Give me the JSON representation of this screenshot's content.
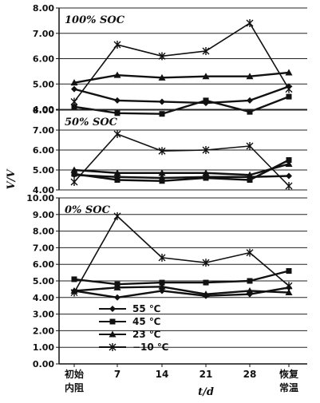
{
  "chart_data": {
    "type": "line",
    "categories": [
      [
        "初始",
        "内阻"
      ],
      [
        "7"
      ],
      [
        "14"
      ],
      [
        "21"
      ],
      [
        "28"
      ],
      [
        "恢复",
        "常温"
      ]
    ],
    "xlabel": "t/d",
    "ylabel": "V/V",
    "legend": {
      "placement": "bottom-left",
      "entries": [
        {
          "label": "55 ℃",
          "marker": "diamond"
        },
        {
          "label": "45 ℃",
          "marker": "square"
        },
        {
          "label": "23 ℃",
          "marker": "triangle"
        },
        {
          "label": "−10 ℃",
          "marker": "x"
        }
      ]
    },
    "panels": [
      {
        "title": "100% SOC",
        "ylim": [
          4.0,
          8.0
        ],
        "yticks": [
          "4.00",
          "5.00",
          "6.00",
          "7.00",
          "8.00"
        ],
        "series": [
          {
            "marker": "diamond",
            "values": [
              4.8,
              4.35,
              4.3,
              4.25,
              4.35,
              4.9
            ]
          },
          {
            "marker": "square",
            "values": [
              4.1,
              3.85,
              3.82,
              4.35,
              3.9,
              4.5
            ]
          },
          {
            "marker": "triangle",
            "values": [
              5.05,
              5.35,
              5.25,
              5.3,
              5.3,
              5.45
            ]
          },
          {
            "marker": "x",
            "values": [
              4.3,
              6.55,
              6.1,
              6.3,
              7.4,
              4.8
            ]
          }
        ]
      },
      {
        "title": "50% SOC",
        "ylim": [
          4.0,
          8.0
        ],
        "yticks": [
          "4.00",
          "5.00",
          "6.00",
          "7.00",
          "8.00"
        ],
        "series": [
          {
            "marker": "diamond",
            "values": [
              4.75,
              4.65,
              4.6,
              4.65,
              4.65,
              4.7
            ]
          },
          {
            "marker": "square",
            "values": [
              4.8,
              4.5,
              4.45,
              4.6,
              4.5,
              5.5
            ]
          },
          {
            "marker": "triangle",
            "values": [
              5.0,
              4.85,
              4.85,
              4.85,
              4.75,
              5.3
            ]
          },
          {
            "marker": "x",
            "values": [
              4.4,
              6.8,
              5.95,
              6.0,
              6.2,
              4.2
            ]
          }
        ]
      },
      {
        "title": "0% SOC",
        "ylim": [
          0.0,
          10.0
        ],
        "yticks": [
          "0.00",
          "1.00",
          "2.00",
          "3.00",
          "4.00",
          "5.00",
          "6.00",
          "7.00",
          "8.00",
          "9.00",
          "10.00"
        ],
        "series": [
          {
            "marker": "diamond",
            "values": [
              4.4,
              4.0,
              4.4,
              4.1,
              4.2,
              4.6
            ]
          },
          {
            "marker": "square",
            "values": [
              5.1,
              4.8,
              4.9,
              4.9,
              5.0,
              5.6
            ]
          },
          {
            "marker": "triangle",
            "values": [
              4.4,
              4.6,
              4.65,
              4.2,
              4.4,
              4.3
            ]
          },
          {
            "marker": "x",
            "values": [
              4.3,
              8.9,
              6.4,
              6.1,
              6.7,
              4.7
            ]
          }
        ]
      }
    ]
  }
}
